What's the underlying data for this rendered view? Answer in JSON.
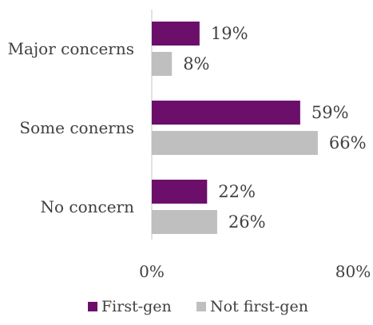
{
  "chart_data": {
    "type": "bar",
    "orientation": "horizontal",
    "categories": [
      "Major concerns",
      "Some conerns",
      "No concern"
    ],
    "series": [
      {
        "name": "First-gen",
        "values": [
          19,
          59,
          22
        ],
        "labels": [
          "19%",
          "59%",
          "22%"
        ],
        "color": "#6b0f6b"
      },
      {
        "name": "Not first-gen",
        "values": [
          8,
          66,
          26
        ],
        "labels": [
          "8%",
          "66%",
          "26%"
        ],
        "color": "#bfbfbf"
      }
    ],
    "xlim": [
      0,
      80
    ],
    "x_ticks": [
      "0%",
      "80%"
    ],
    "grid": false,
    "legend": "bottom"
  }
}
